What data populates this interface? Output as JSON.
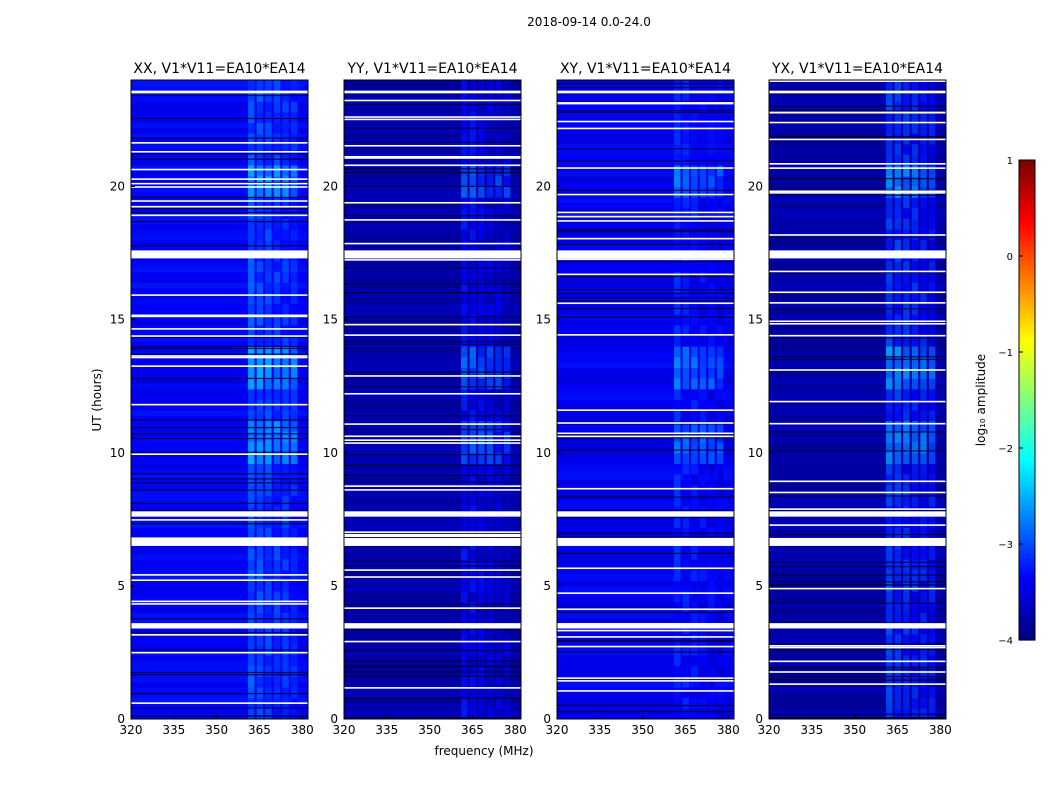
{
  "figure_title": "2018-09-14 0.0-24.0",
  "chart_data": {
    "type": "heatmap",
    "title": "2018-09-14 0.0-24.0",
    "xlabel": "frequency (MHz)",
    "ylabel": "UT (hours)",
    "xlim": [
      320,
      382
    ],
    "ylim": [
      0,
      24
    ],
    "x_ticks": [
      320,
      335,
      350,
      365,
      380
    ],
    "y_ticks": [
      0,
      5,
      10,
      15,
      20
    ],
    "panels": [
      {
        "title": "XX, V1*V11=EA10*EA14",
        "pol": "XX",
        "bg_level": -3.45,
        "band_level": -2.75
      },
      {
        "title": "YY, V1*V11=EA10*EA14",
        "pol": "YY",
        "bg_level": -3.85,
        "band_level": -3.2
      },
      {
        "title": "XY, V1*V11=EA10*EA14",
        "pol": "XY",
        "bg_level": -3.5,
        "band_level": -3.05
      },
      {
        "title": "YX, V1*V11=EA10*EA14",
        "pol": "YX",
        "bg_level": -3.85,
        "band_level": -2.9
      }
    ],
    "rfi_band_mhz": [
      361,
      379
    ],
    "bright_band_intervals_ut": [
      [
        12.2,
        13.8
      ],
      [
        19.5,
        20.5
      ],
      [
        9.3,
        11.0
      ]
    ],
    "flagged_ut_intervals": [
      [
        17.3,
        17.6
      ],
      [
        6.5,
        6.8
      ],
      [
        7.6,
        7.8
      ],
      [
        3.4,
        3.6
      ],
      [
        23.5,
        23.6
      ]
    ],
    "colorbar": {
      "label": "log₁₀ amplitude",
      "range": [
        -4,
        1
      ],
      "ticks": [
        -4,
        -3,
        -2,
        -1,
        0,
        1
      ],
      "tick_labels": [
        "−4",
        "−3",
        "−2",
        "−1",
        "0",
        "1"
      ],
      "colormap": "jet"
    }
  }
}
